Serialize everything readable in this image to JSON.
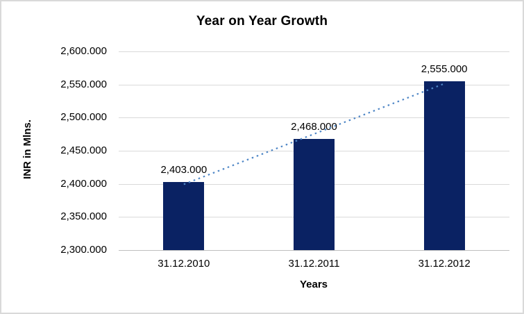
{
  "chart_data": {
    "type": "bar",
    "title": "Year on Year Growth",
    "xlabel": "Years",
    "ylabel": "INR in Mlns.",
    "categories": [
      "31.12.2010",
      "31.12.2011",
      "31.12.2012"
    ],
    "values": [
      2403,
      2468,
      2555
    ],
    "data_labels": [
      "2,403.000",
      "2,468.000",
      "2,555.000"
    ],
    "y_ticks": [
      {
        "value": 2600,
        "label": "2,600.000"
      },
      {
        "value": 2550,
        "label": "2,550.000"
      },
      {
        "value": 2500,
        "label": "2,500.000"
      },
      {
        "value": 2450,
        "label": "2,450.000"
      },
      {
        "value": 2400,
        "label": "2,400.000"
      },
      {
        "value": 2350,
        "label": "2,350.000"
      },
      {
        "value": 2300,
        "label": "2,300.000"
      }
    ],
    "ylim": [
      2300,
      2600
    ],
    "grid": true,
    "legend": false,
    "trendline": {
      "type": "linear",
      "style": "dotted",
      "endpoint_values": [
        2399.33,
        2551.33
      ]
    },
    "colors": {
      "bar": "#0a2263",
      "trendline": "#4e86c6",
      "gridline": "#d9d9d9",
      "axis_line": "#bfbfbf",
      "text": "#000000",
      "background": "#ffffff",
      "frame_border": "#d9d9d9"
    }
  }
}
